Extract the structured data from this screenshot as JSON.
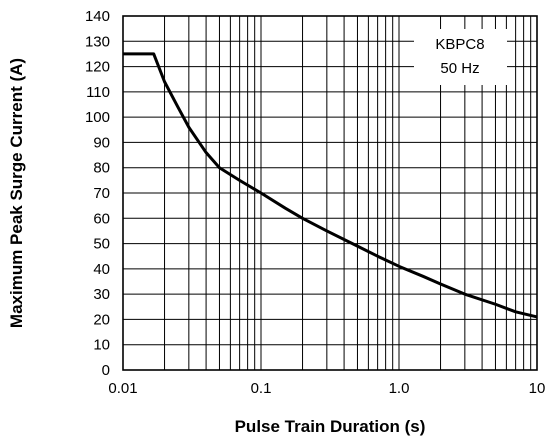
{
  "chart_data": {
    "type": "line",
    "title": "",
    "xlabel": "Pulse Train Duration (s)",
    "ylabel": "Maximum Peak Surge Current (A)",
    "x_scale": "log",
    "xlim": [
      0.01,
      10
    ],
    "ylim": [
      0,
      140
    ],
    "x_tick_labels": [
      "0.01",
      "0.1",
      "1.0",
      "10"
    ],
    "y_tick_labels": [
      "0",
      "10",
      "20",
      "30",
      "40",
      "50",
      "60",
      "70",
      "80",
      "90",
      "100",
      "110",
      "120",
      "130",
      "140"
    ],
    "grid": true,
    "legend_lines": [
      "KBPC8",
      "50 Hz"
    ],
    "legend_position": "top-right",
    "line_color": "#000000",
    "series": [
      {
        "x": [
          0.01,
          0.0167,
          0.02,
          0.025,
          0.03,
          0.04,
          0.05,
          0.07,
          0.1,
          0.15,
          0.2,
          0.3,
          0.5,
          0.7,
          1.0,
          1.5,
          2,
          3,
          5,
          7,
          10
        ],
        "y": [
          125,
          125,
          114,
          104,
          96,
          86,
          80,
          75,
          70,
          64,
          60,
          55,
          49,
          45,
          41,
          37,
          34,
          30,
          26,
          23,
          21
        ]
      }
    ]
  }
}
